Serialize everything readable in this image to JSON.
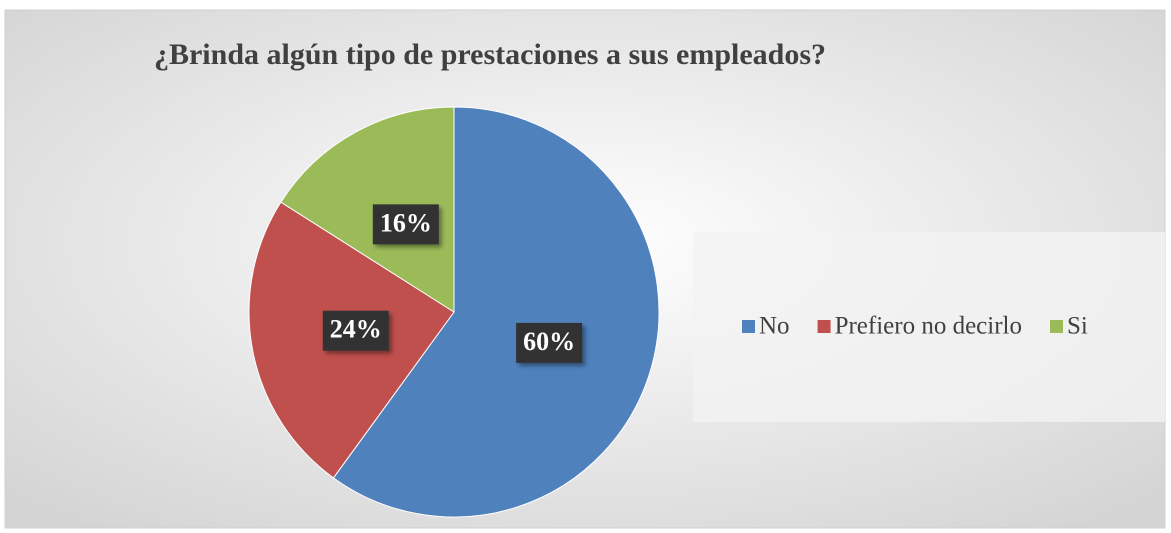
{
  "chart_data": {
    "type": "pie",
    "title": "¿Brinda algún tipo de prestaciones a sus empleados?",
    "categories": [
      "No",
      "Prefiero no decirlo",
      "Si"
    ],
    "values": [
      60,
      24,
      16
    ],
    "value_labels": [
      "60%",
      "24%",
      "16%"
    ],
    "colors": [
      "#4f81bd",
      "#c0504d",
      "#9bbb59"
    ],
    "legend": "right"
  }
}
